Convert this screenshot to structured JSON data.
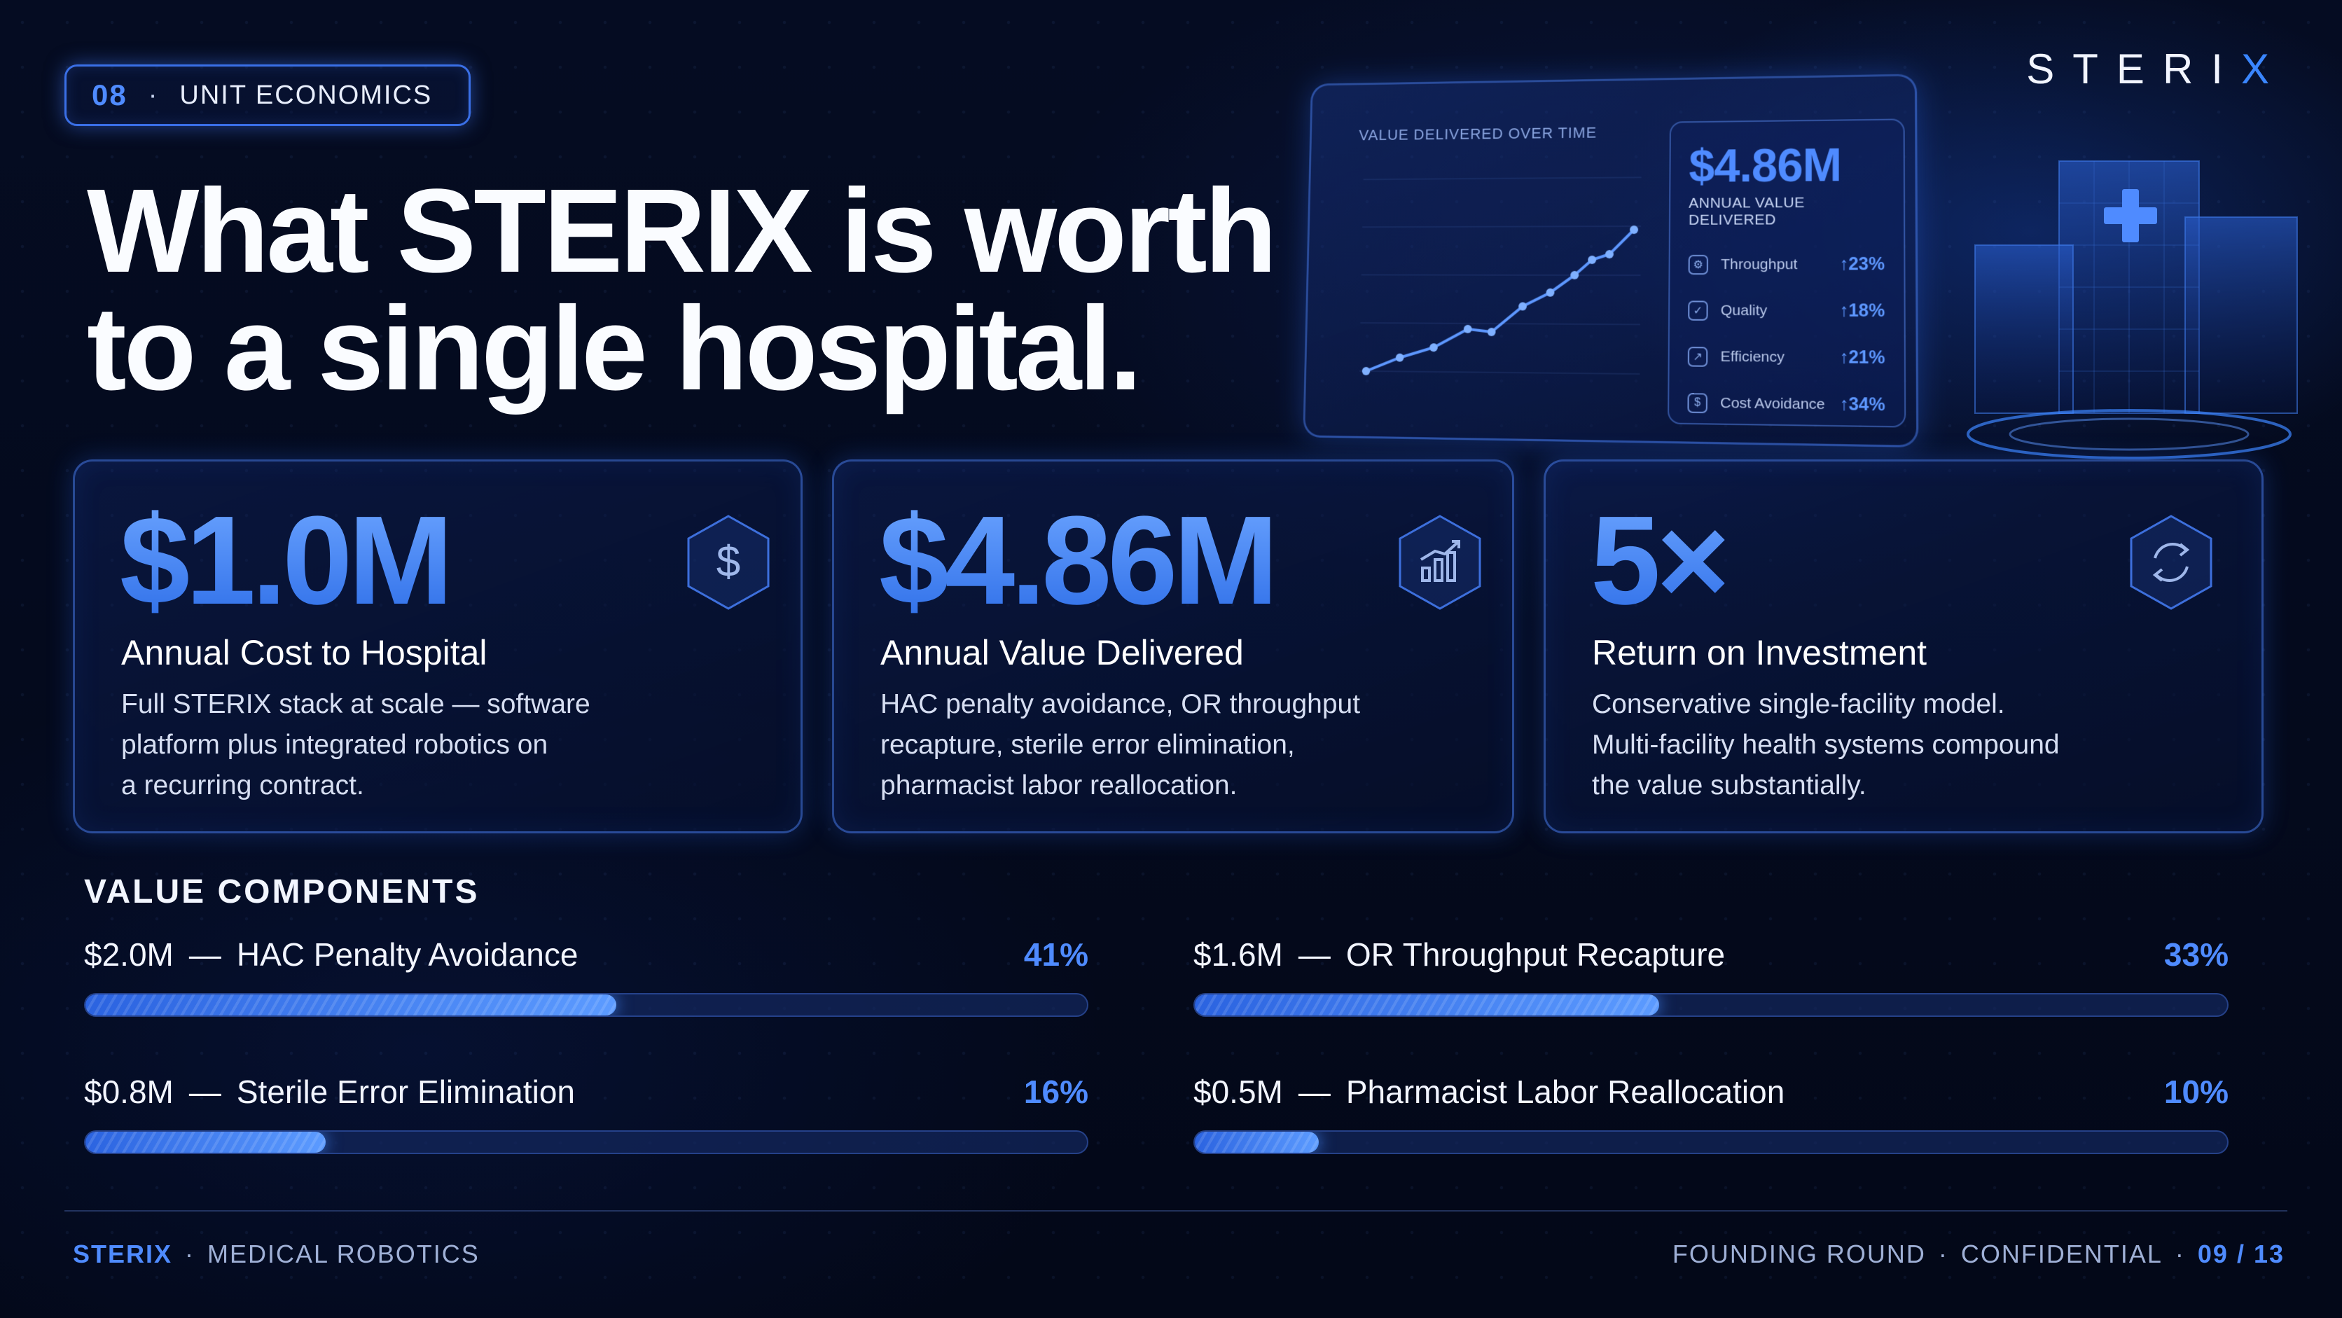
{
  "badge": {
    "number": "08",
    "separator": "·",
    "label": "UNIT ECONOMICS"
  },
  "brand": {
    "prefix": "STERI",
    "accent": "X"
  },
  "headline": {
    "line1": "What STERIX is worth",
    "line2": "to a single hospital."
  },
  "dashboard": {
    "title": "VALUE DELIVERED OVER TIME",
    "kpi_value": "$4.86M",
    "kpi_label": "ANNUAL VALUE DELIVERED",
    "rows": [
      {
        "icon": "gear-icon",
        "name": "Throughput",
        "change": "↑23%"
      },
      {
        "icon": "shield-check-icon",
        "name": "Quality",
        "change": "↑18%"
      },
      {
        "icon": "efficiency-icon",
        "name": "Efficiency",
        "change": "↑21%"
      },
      {
        "icon": "piggy-bank-icon",
        "name": "Cost Avoidance",
        "change": "↑34%"
      }
    ]
  },
  "cards": [
    {
      "value": "$1.0M",
      "title": "Annual Cost to Hospital",
      "desc1": "Full STERIX stack at scale — software",
      "desc2": "platform plus integrated robotics on",
      "desc3": "a recurring contract.",
      "icon": "dollar-icon"
    },
    {
      "value": "$4.86M",
      "title": "Annual Value Delivered",
      "desc1": "HAC penalty avoidance, OR throughput",
      "desc2": "recapture, sterile error elimination,",
      "desc3": "pharmacist labor reallocation.",
      "icon": "bar-chart-growth-icon"
    },
    {
      "value": "5×",
      "title": "Return on Investment",
      "desc1": "Conservative single-facility model.",
      "desc2": "Multi-facility health systems compound",
      "desc3": "the value substantially.",
      "icon": "refresh-cycle-icon"
    }
  ],
  "value_components": {
    "title": "VALUE COMPONENTS",
    "items": [
      {
        "amount": "$2.0M",
        "dash": "—",
        "name": "HAC Penalty Avoidance",
        "pct_label": "41%",
        "fill": 0.53
      },
      {
        "amount": "$1.6M",
        "dash": "—",
        "name": "OR Throughput Recapture",
        "pct_label": "33%",
        "fill": 0.45
      },
      {
        "amount": "$0.8M",
        "dash": "—",
        "name": "Sterile Error Elimination",
        "pct_label": "16%",
        "fill": 0.24
      },
      {
        "amount": "$0.5M",
        "dash": "—",
        "name": "Pharmacist Labor Reallocation",
        "pct_label": "10%",
        "fill": 0.12
      }
    ]
  },
  "footer": {
    "brand": "STERIX",
    "sep": "·",
    "left_label": "MEDICAL ROBOTICS",
    "round": "FOUNDING ROUND",
    "confidential": "CONFIDENTIAL",
    "page": "09 / 13"
  },
  "colors": {
    "accent": "#4f8bff",
    "background": "#040a1c",
    "card_border": "#3a6fe6"
  }
}
